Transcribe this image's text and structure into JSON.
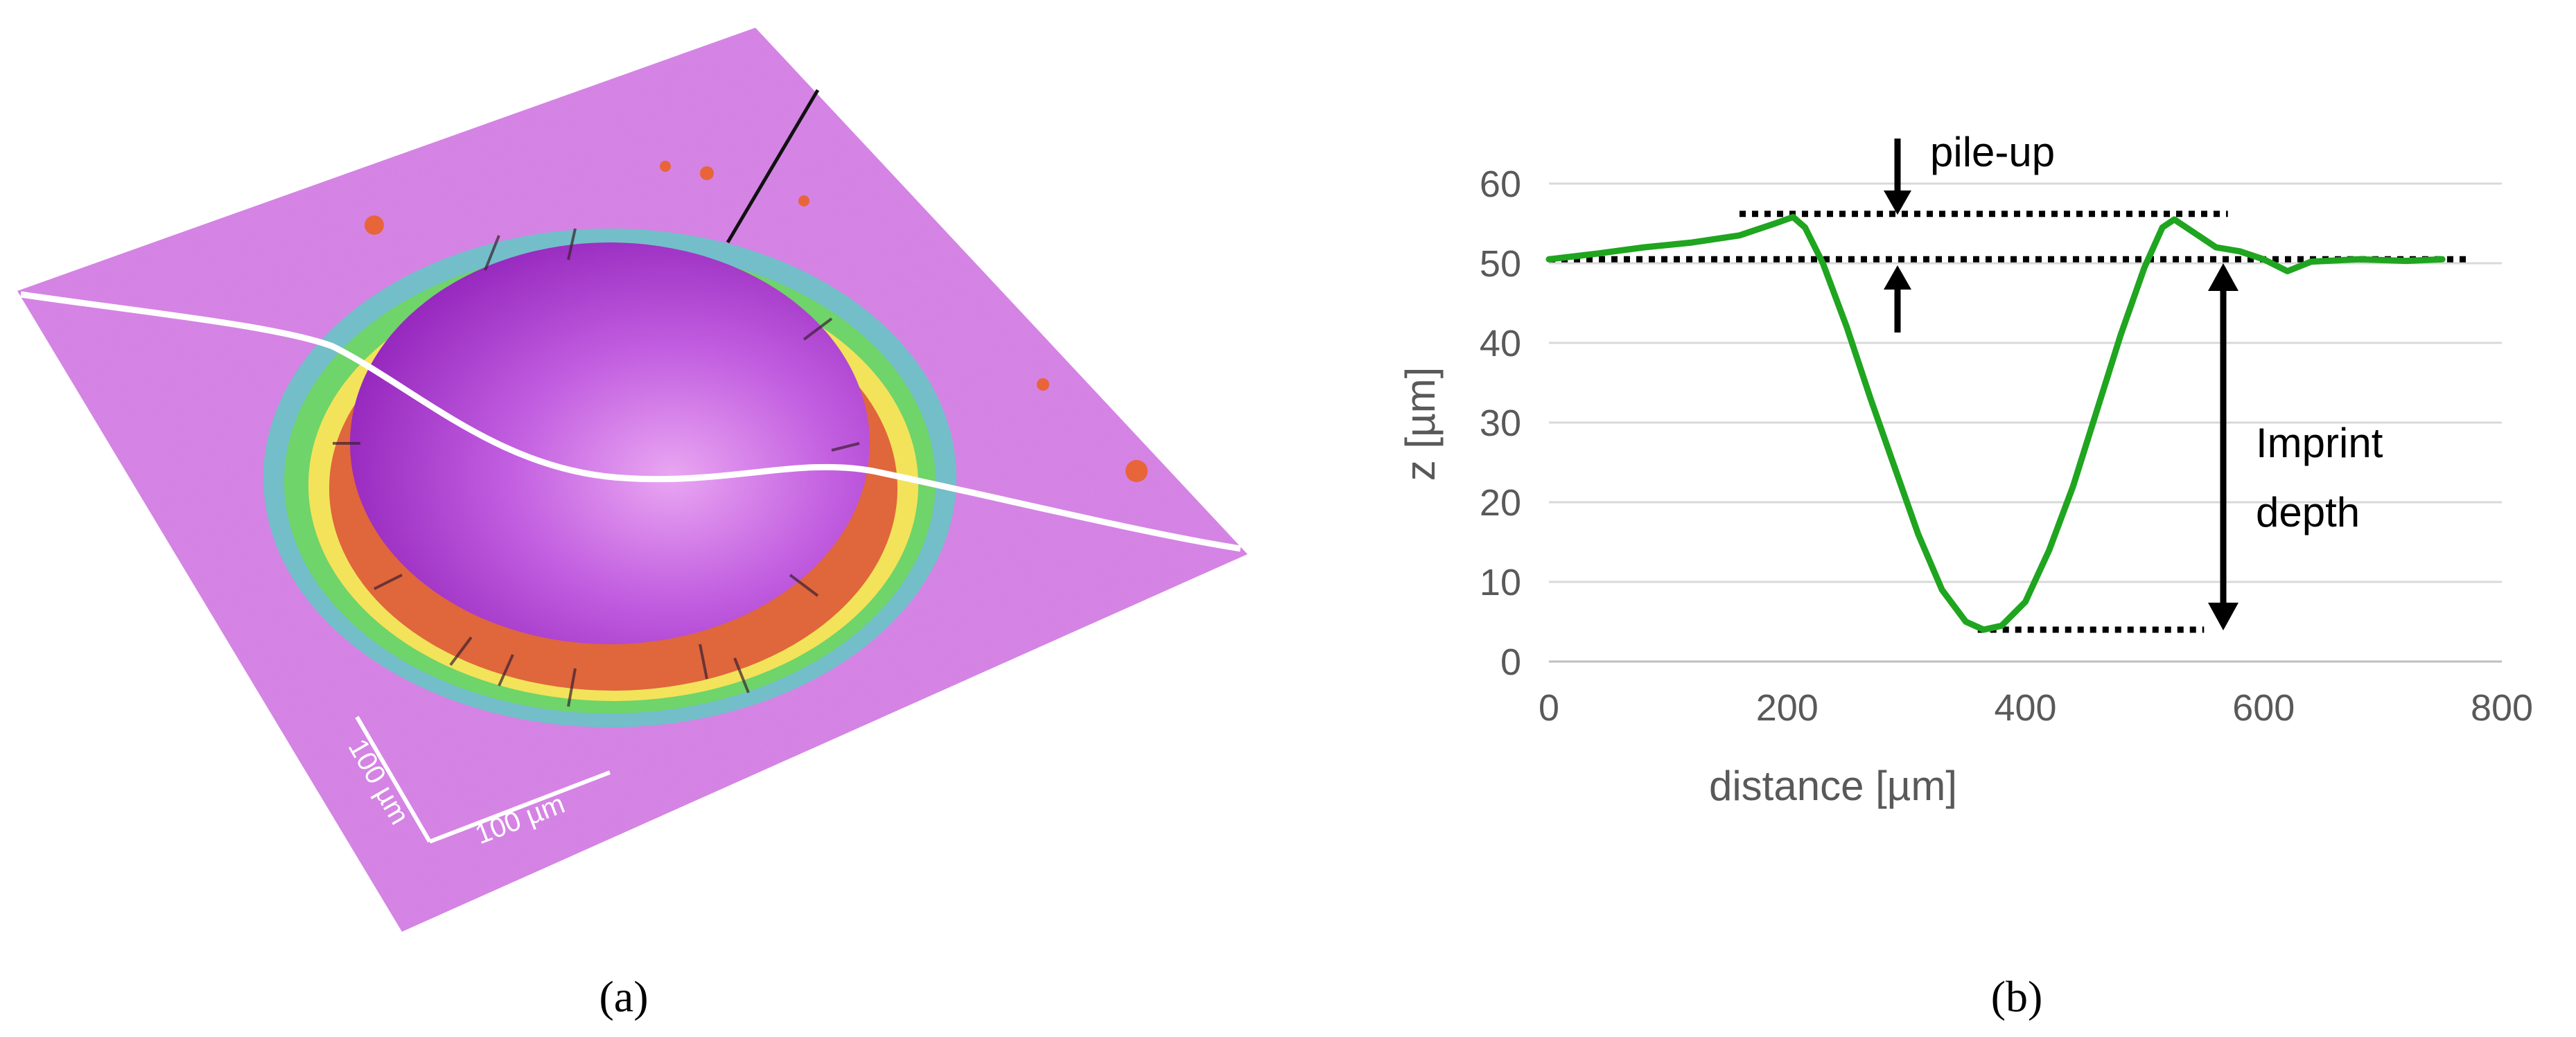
{
  "panels": {
    "a": {
      "caption": "(a)",
      "scale_bar_x": "100 µm",
      "scale_bar_y": "100 µm",
      "colors": {
        "background": "#d77ee8",
        "crater": "#b43fd6",
        "rim_green": "#6fd46a",
        "rim_yellow": "#f3e35a",
        "rim_red": "#e0663c",
        "profile_line": "#ffffff"
      }
    },
    "b": {
      "caption": "(b)",
      "annotations": {
        "pile_up": "pile-up",
        "imprint_line1": "Imprint",
        "imprint_line2": "depth"
      }
    }
  },
  "chart_data": {
    "type": "line",
    "title": "",
    "xlabel": "distance [µm]",
    "ylabel": "z [µm]",
    "xlim": [
      0,
      800
    ],
    "ylim": [
      0,
      60
    ],
    "xticks": [
      0,
      200,
      400,
      600,
      800
    ],
    "yticks": [
      0,
      10,
      20,
      30,
      40,
      50,
      60
    ],
    "grid": "horizontal",
    "series": [
      {
        "color": "#1fa51f",
        "x": [
          0,
          40,
          80,
          120,
          160,
          190,
          205,
          215,
          230,
          250,
          270,
          290,
          310,
          330,
          350,
          365,
          380,
          400,
          420,
          440,
          460,
          480,
          500,
          515,
          525,
          540,
          560,
          580,
          600,
          620,
          640,
          680,
          720,
          750
        ],
        "y": [
          50.5,
          51.2,
          52,
          52.6,
          53.5,
          55,
          55.8,
          54.5,
          50,
          42,
          33,
          24.5,
          16,
          9,
          5,
          4,
          4.5,
          7.5,
          14,
          22,
          31.5,
          41,
          49.5,
          54.5,
          55.5,
          54,
          52,
          51.5,
          50.5,
          49,
          50.2,
          50.5,
          50.3,
          50.5
        ]
      }
    ],
    "reference_lines": [
      {
        "y": 56.2,
        "x_start": 160,
        "x_end": 570
      },
      {
        "y": 50.5,
        "x_start": 0,
        "x_end": 770
      },
      {
        "y": 4.0,
        "x_start": 360,
        "x_end": 550
      }
    ]
  }
}
